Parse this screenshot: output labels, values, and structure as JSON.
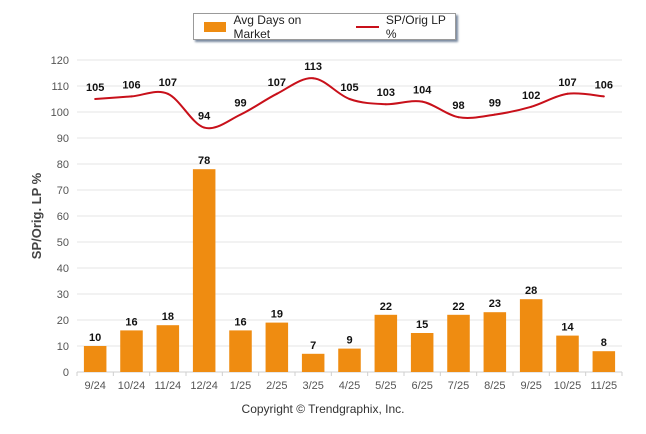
{
  "chart_data": {
    "type": "bar",
    "title": "",
    "xlabel": "",
    "ylabel": "SP/Orig. LP %",
    "ylim": [
      0,
      120
    ],
    "yticks": [
      0,
      10,
      20,
      30,
      40,
      50,
      60,
      70,
      80,
      90,
      100,
      110,
      120
    ],
    "grid": true,
    "legend_position": "top-center",
    "categories": [
      "9/24",
      "10/24",
      "11/24",
      "12/24",
      "1/25",
      "2/25",
      "3/25",
      "4/25",
      "5/25",
      "6/25",
      "7/25",
      "8/25",
      "9/25",
      "10/25",
      "11/25"
    ],
    "series": [
      {
        "name": "Avg Days on Market",
        "type": "bar",
        "color": "#ef8c11",
        "values": [
          10,
          16,
          18,
          78,
          16,
          19,
          7,
          9,
          22,
          15,
          22,
          23,
          28,
          14,
          8
        ]
      },
      {
        "name": "SP/Orig LP %",
        "type": "line",
        "color": "#c8101a",
        "values": [
          105,
          106,
          107,
          94,
          99,
          107,
          113,
          105,
          103,
          104,
          98,
          99,
          102,
          107,
          106
        ]
      }
    ]
  },
  "footer": {
    "copyright": "Copyright © Trendgraphix, Inc."
  }
}
